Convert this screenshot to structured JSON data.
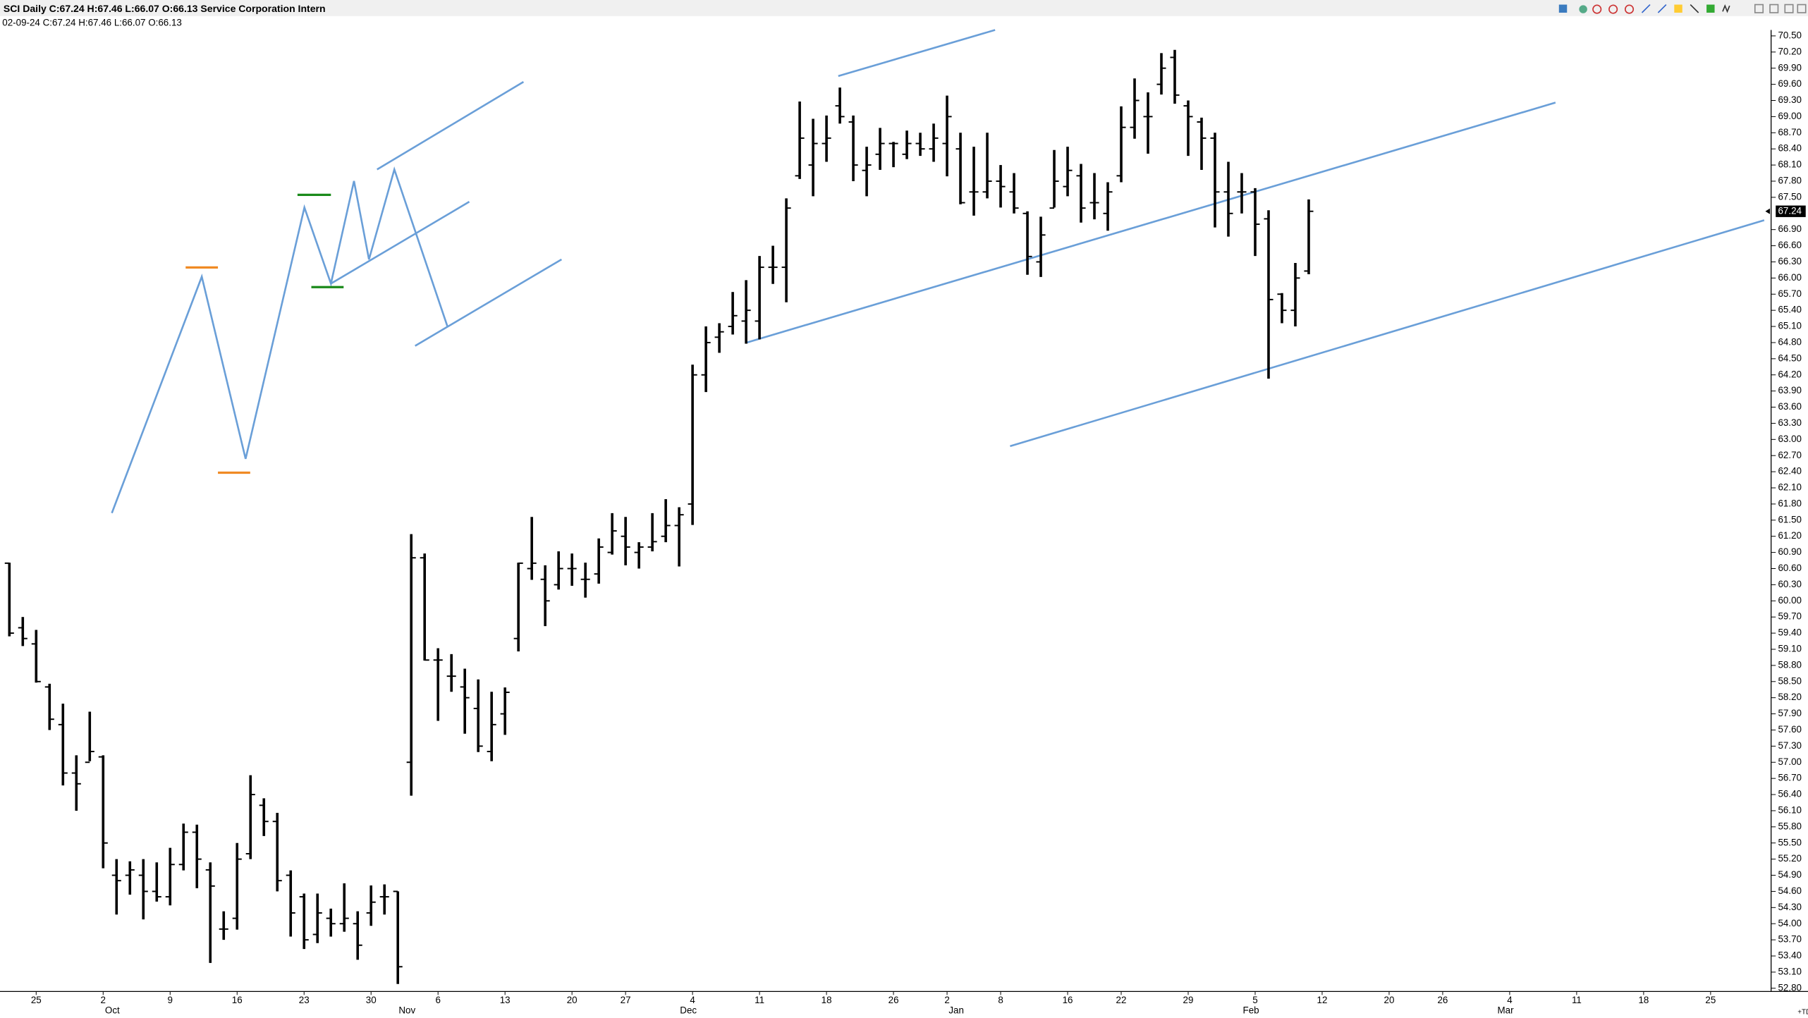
{
  "chart_data": {
    "type": "ohlc",
    "title": "SCI Daily C:67.24 H:67.46 L:66.07 O:66.13 Service Corporation Intern",
    "subtitle": "02-09-24 C:67.24 H:67.46 L:66.07 O:66.13",
    "color": "#000000",
    "open": [
      60.7,
      59.5,
      59.2,
      58.4,
      57.7,
      56.8,
      57.0,
      57.1,
      54.9,
      54.9,
      54.9,
      54.6,
      54.5,
      55.1,
      55.7,
      55.0,
      53.9,
      54.1,
      55.3,
      56.2,
      55.9,
      54.9,
      54.5,
      53.8,
      54.1,
      54.0,
      54.0,
      54.2,
      54.5,
      54.6,
      57.0,
      60.8,
      58.9,
      58.6,
      58.4,
      58.0,
      57.2,
      57.9,
      59.3,
      60.6,
      60.4,
      60.3,
      60.6,
      60.4,
      60.5,
      60.9,
      61.2,
      60.9,
      61.0,
      61.2,
      61.4,
      61.8,
      64.2,
      64.9,
      65.1,
      65.2,
      65.2,
      66.2,
      66.2,
      67.9,
      68.1,
      68.5,
      69.2,
      68.9,
      68.0,
      68.3,
      68.5,
      68.3,
      68.5,
      68.4,
      68.5,
      68.4,
      67.6,
      67.6,
      67.8,
      67.6,
      67.2,
      66.3,
      67.3,
      67.7,
      67.9,
      67.4,
      67.2,
      67.9,
      68.8,
      69.0,
      69.6,
      70.1,
      69.2,
      68.9,
      68.6,
      67.6,
      67.6,
      67.6,
      67.1,
      65.7,
      65.4,
      66.13
    ],
    "high": [
      60.71,
      59.7,
      59.46,
      58.46,
      58.09,
      57.13,
      57.94,
      57.13,
      55.2,
      55.16,
      55.2,
      55.14,
      55.41,
      55.86,
      55.84,
      55.14,
      54.23,
      55.5,
      56.76,
      56.33,
      56.06,
      54.99,
      54.56,
      54.56,
      54.28,
      54.75,
      54.23,
      54.71,
      54.73,
      54.6,
      61.24,
      60.88,
      59.12,
      59.01,
      58.74,
      58.54,
      58.31,
      58.39,
      60.71,
      61.56,
      60.66,
      60.92,
      60.88,
      60.71,
      61.16,
      61.63,
      61.56,
      61.09,
      61.63,
      61.89,
      61.74,
      64.39,
      65.1,
      65.16,
      65.74,
      65.96,
      66.41,
      66.6,
      67.48,
      69.28,
      68.96,
      69.02,
      69.54,
      69.02,
      68.44,
      68.79,
      68.53,
      68.74,
      68.7,
      68.87,
      69.39,
      68.7,
      68.44,
      68.7,
      68.1,
      67.95,
      67.24,
      67.14,
      68.38,
      68.44,
      68.12,
      67.95,
      67.78,
      69.19,
      69.71,
      69.45,
      70.18,
      70.24,
      69.3,
      68.98,
      68.7,
      68.16,
      67.95,
      67.67,
      67.26,
      65.72,
      66.28,
      67.46
    ],
    "low": [
      59.34,
      59.16,
      58.48,
      57.6,
      56.57,
      56.1,
      57.02,
      55.03,
      54.17,
      54.54,
      54.08,
      54.41,
      54.34,
      54.99,
      54.66,
      53.27,
      53.7,
      53.89,
      55.2,
      55.63,
      54.6,
      53.76,
      53.53,
      53.64,
      53.76,
      53.85,
      53.33,
      53.96,
      54.17,
      52.88,
      56.38,
      58.89,
      57.77,
      58.31,
      57.53,
      57.19,
      57.02,
      57.51,
      59.06,
      60.39,
      59.53,
      60.21,
      60.28,
      60.06,
      60.32,
      60.86,
      60.66,
      60.6,
      60.92,
      61.09,
      60.64,
      61.41,
      63.88,
      64.61,
      64.95,
      64.78,
      64.86,
      65.89,
      65.55,
      67.84,
      67.52,
      68.16,
      68.87,
      67.8,
      67.52,
      68.01,
      68.06,
      68.21,
      68.27,
      68.16,
      67.89,
      67.37,
      67.16,
      67.48,
      67.31,
      67.2,
      66.06,
      66.02,
      67.31,
      67.52,
      67.03,
      67.09,
      66.88,
      67.78,
      68.59,
      68.31,
      69.41,
      69.24,
      68.27,
      68.01,
      66.94,
      66.77,
      67.2,
      66.41,
      64.13,
      65.16,
      65.1,
      66.07
    ],
    "close": [
      59.4,
      59.3,
      58.5,
      57.8,
      56.8,
      56.6,
      57.2,
      55.5,
      54.8,
      55.0,
      54.6,
      54.5,
      55.1,
      55.7,
      55.2,
      54.7,
      53.9,
      55.2,
      56.4,
      55.9,
      54.8,
      54.2,
      53.7,
      54.2,
      54.0,
      54.1,
      53.6,
      54.4,
      54.5,
      53.2,
      60.8,
      58.9,
      58.9,
      58.6,
      58.2,
      57.3,
      57.7,
      58.3,
      60.7,
      60.7,
      60.0,
      60.6,
      60.6,
      60.4,
      61.0,
      61.3,
      61.0,
      61.0,
      61.1,
      61.4,
      61.6,
      64.2,
      64.8,
      65.0,
      65.3,
      65.4,
      66.2,
      66.2,
      67.3,
      68.6,
      68.5,
      68.6,
      69.0,
      68.1,
      68.1,
      68.5,
      68.5,
      68.5,
      68.4,
      68.6,
      69.0,
      67.4,
      67.6,
      67.8,
      67.7,
      67.3,
      66.4,
      66.8,
      67.8,
      68.0,
      67.3,
      67.4,
      67.6,
      68.8,
      69.3,
      69.0,
      69.9,
      69.4,
      69.0,
      68.6,
      67.6,
      67.2,
      67.6,
      67.0,
      65.6,
      65.4,
      66.0,
      67.24
    ],
    "xlim": [
      -0.7,
      131
    ],
    "ylim": [
      52.74,
      70.61
    ],
    "xticks": [
      {
        "value": 2,
        "label": "25"
      },
      {
        "value": 7,
        "label": "2"
      },
      {
        "value": 12,
        "label": "9"
      },
      {
        "value": 17,
        "label": "16"
      },
      {
        "value": 22,
        "label": "23"
      },
      {
        "value": 27,
        "label": "30"
      },
      {
        "value": 32,
        "label": "6"
      },
      {
        "value": 37,
        "label": "13"
      },
      {
        "value": 42,
        "label": "20"
      },
      {
        "value": 46,
        "label": "27"
      },
      {
        "value": 51,
        "label": "4"
      },
      {
        "value": 56,
        "label": "11"
      },
      {
        "value": 61,
        "label": "18"
      },
      {
        "value": 66,
        "label": "26"
      },
      {
        "value": 70,
        "label": "2"
      },
      {
        "value": 74,
        "label": "8"
      },
      {
        "value": 79,
        "label": "16"
      },
      {
        "value": 83,
        "label": "22"
      },
      {
        "value": 88,
        "label": "29"
      },
      {
        "value": 93,
        "label": "5"
      },
      {
        "value": 98,
        "label": "12"
      },
      {
        "value": 103,
        "label": "20"
      },
      {
        "value": 107,
        "label": "26"
      },
      {
        "value": 112,
        "label": "4"
      },
      {
        "value": 117,
        "label": "11"
      },
      {
        "value": 122,
        "label": "18"
      },
      {
        "value": 127,
        "label": "25"
      }
    ],
    "month_labels": [
      {
        "value": 7,
        "label": "Oct"
      },
      {
        "value": 29,
        "label": "Nov"
      },
      {
        "value": 50,
        "label": "Dec"
      },
      {
        "value": 70,
        "label": "Jan"
      },
      {
        "value": 92,
        "label": "Feb"
      },
      {
        "value": 111,
        "label": "Mar"
      }
    ],
    "yticks": [
      {
        "value": 52.8,
        "label": "52.80"
      },
      {
        "value": 53.1,
        "label": "53.10"
      },
      {
        "value": 53.4,
        "label": "53.40"
      },
      {
        "value": 53.7,
        "label": "53.70"
      },
      {
        "value": 54.0,
        "label": "54.00"
      },
      {
        "value": 54.3,
        "label": "54.30"
      },
      {
        "value": 54.6,
        "label": "54.60"
      },
      {
        "value": 54.9,
        "label": "54.90"
      },
      {
        "value": 55.2,
        "label": "55.20"
      },
      {
        "value": 55.5,
        "label": "55.50"
      },
      {
        "value": 55.8,
        "label": "55.80"
      },
      {
        "value": 56.1,
        "label": "56.10"
      },
      {
        "value": 56.4,
        "label": "56.40"
      },
      {
        "value": 56.7,
        "label": "56.70"
      },
      {
        "value": 57.0,
        "label": "57.00"
      },
      {
        "value": 57.3,
        "label": "57.30"
      },
      {
        "value": 57.6,
        "label": "57.60"
      },
      {
        "value": 57.9,
        "label": "57.90"
      },
      {
        "value": 58.2,
        "label": "58.20"
      },
      {
        "value": 58.5,
        "label": "58.50"
      },
      {
        "value": 58.8,
        "label": "58.80"
      },
      {
        "value": 59.1,
        "label": "59.10"
      },
      {
        "value": 59.4,
        "label": "59.40"
      },
      {
        "value": 59.7,
        "label": "59.70"
      },
      {
        "value": 60.0,
        "label": "60.00"
      },
      {
        "value": 60.3,
        "label": "60.30"
      },
      {
        "value": 60.6,
        "label": "60.60"
      },
      {
        "value": 60.9,
        "label": "60.90"
      },
      {
        "value": 61.2,
        "label": "61.20"
      },
      {
        "value": 61.5,
        "label": "61.50"
      },
      {
        "value": 61.8,
        "label": "61.80"
      },
      {
        "value": 62.1,
        "label": "62.10"
      },
      {
        "value": 62.4,
        "label": "62.40"
      },
      {
        "value": 62.7,
        "label": "62.70"
      },
      {
        "value": 63.0,
        "label": "63.00"
      },
      {
        "value": 63.3,
        "label": "63.30"
      },
      {
        "value": 63.6,
        "label": "63.60"
      },
      {
        "value": 63.9,
        "label": "63.90"
      },
      {
        "value": 64.2,
        "label": "64.20"
      },
      {
        "value": 64.5,
        "label": "64.50"
      },
      {
        "value": 64.8,
        "label": "64.80"
      },
      {
        "value": 65.1,
        "label": "65.10"
      },
      {
        "value": 65.4,
        "label": "65.40"
      },
      {
        "value": 65.7,
        "label": "65.70"
      },
      {
        "value": 66.0,
        "label": "66.00"
      },
      {
        "value": 66.3,
        "label": "66.30"
      },
      {
        "value": 66.6,
        "label": "66.60"
      },
      {
        "value": 66.9,
        "label": "66.90"
      },
      {
        "value": 67.5,
        "label": "67.50"
      },
      {
        "value": 67.8,
        "label": "67.80"
      },
      {
        "value": 68.1,
        "label": "68.10"
      },
      {
        "value": 68.4,
        "label": "68.40"
      },
      {
        "value": 68.7,
        "label": "68.70"
      },
      {
        "value": 69.0,
        "label": "69.00"
      },
      {
        "value": 69.3,
        "label": "69.30"
      },
      {
        "value": 69.6,
        "label": "69.60"
      },
      {
        "value": 69.9,
        "label": "69.90"
      },
      {
        "value": 70.2,
        "label": "70.20"
      },
      {
        "value": 70.5,
        "label": "70.50"
      }
    ]
  }
}
